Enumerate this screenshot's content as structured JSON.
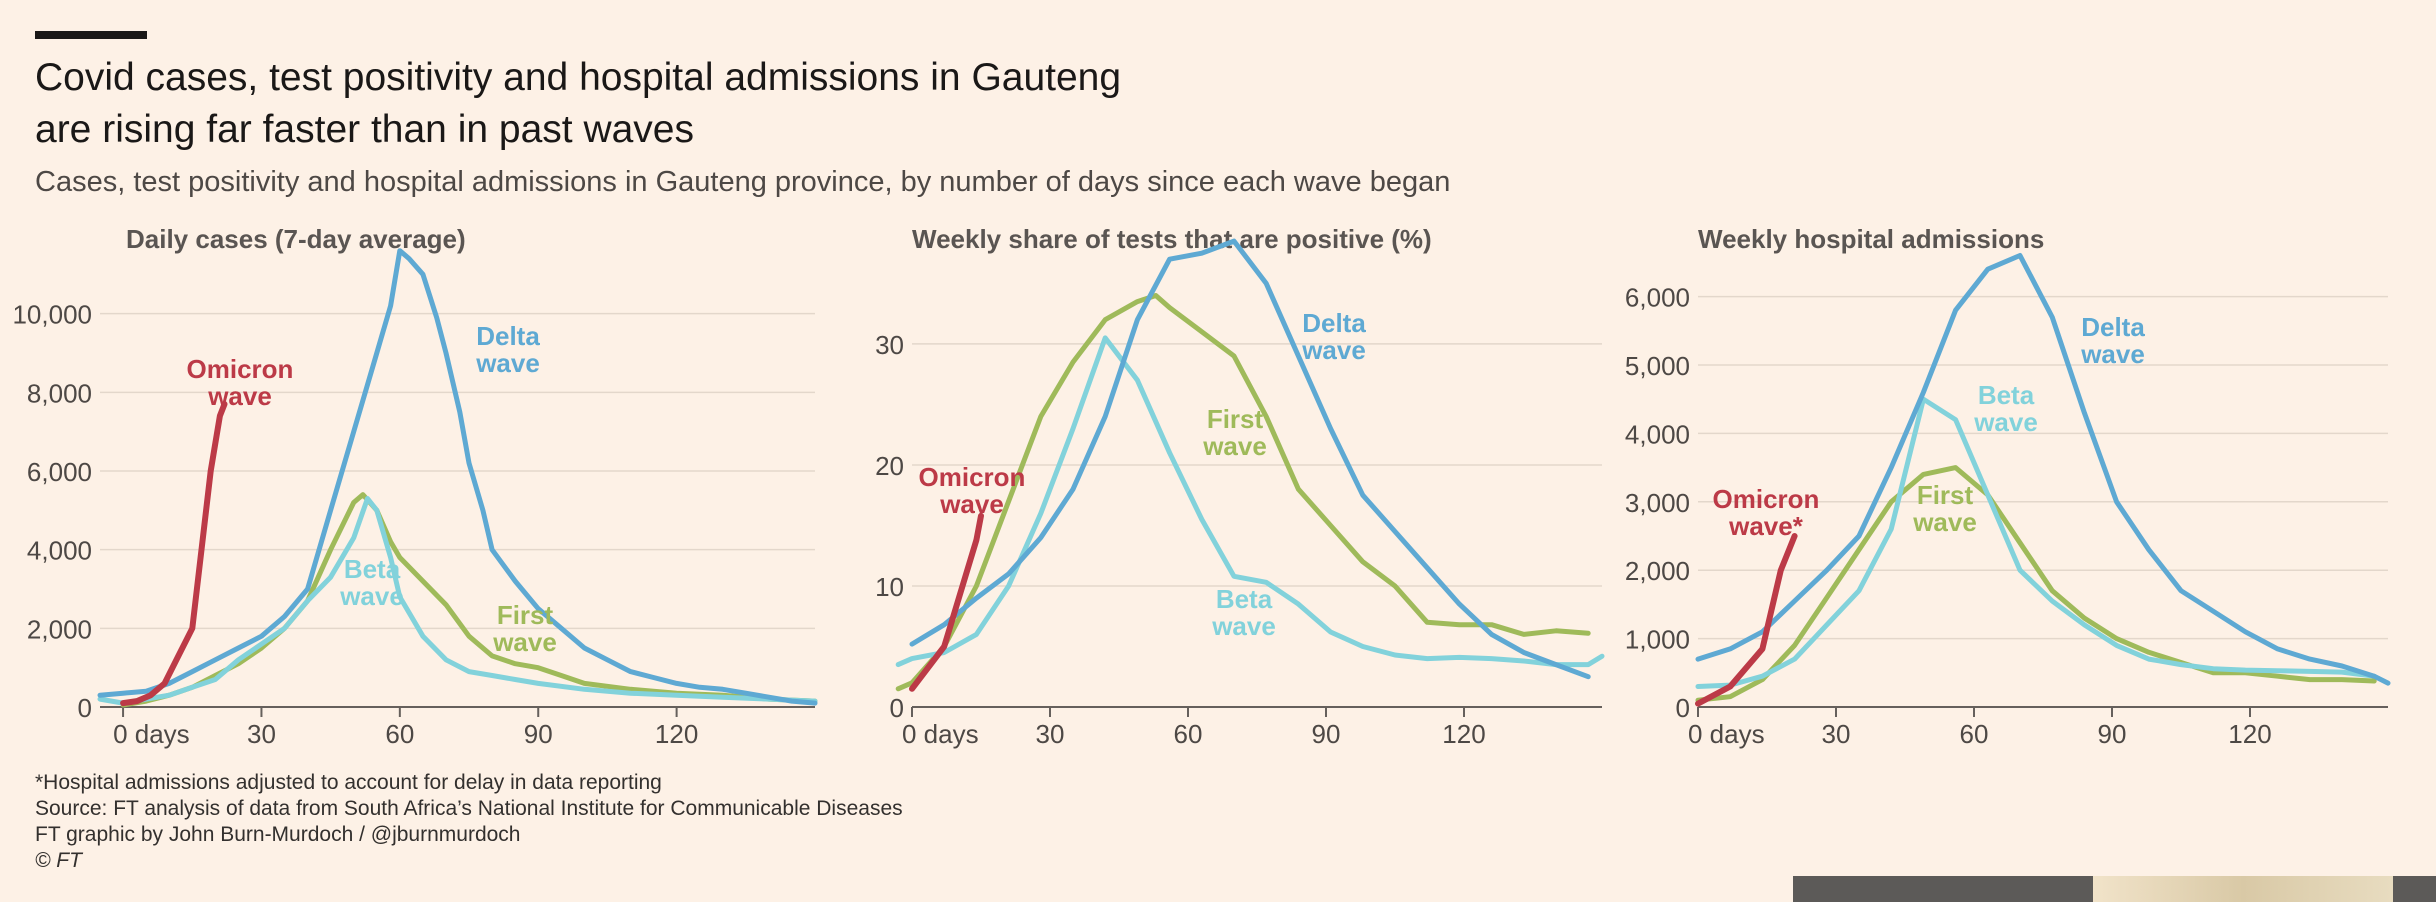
{
  "title_line1": "Covid cases, test positivity and hospital admissions in Gauteng",
  "title_line2": "are rising far faster than in past waves",
  "subtitle": "Cases, test positivity and hospital admissions in Gauteng province, by number of days since each wave began",
  "colors": {
    "omicron": "#bc3a47",
    "delta": "#5ea9d3",
    "beta": "#82d2db",
    "first": "#9fba5a",
    "background": "#fdf1e6",
    "grid": "#e3d7cb"
  },
  "series_labels": {
    "omicron": [
      "Omicron",
      "wave"
    ],
    "omicron_star": [
      "Omicron",
      "wave*"
    ],
    "delta": [
      "Delta",
      "wave"
    ],
    "beta": [
      "Beta",
      "wave"
    ],
    "first": [
      "First",
      "wave"
    ]
  },
  "chart_data": [
    {
      "type": "line",
      "title": "Daily cases (7-day average)",
      "xlabel": "days since each wave began",
      "xlim": [
        -5,
        150
      ],
      "ylim": [
        0,
        12000
      ],
      "x_ticks": [
        0,
        30,
        60,
        90,
        120
      ],
      "x_tick_labels": [
        "0 days",
        "30",
        "60",
        "90",
        "120"
      ],
      "y_ticks": [
        0,
        2000,
        4000,
        6000,
        8000,
        10000
      ],
      "y_tick_labels": [
        "0",
        "2,000",
        "4,000",
        "6,000",
        "8,000",
        "10,000"
      ],
      "series": [
        {
          "name": "Delta wave",
          "key": "delta",
          "x": [
            -5,
            0,
            5,
            10,
            15,
            20,
            25,
            30,
            35,
            40,
            45,
            50,
            55,
            58,
            60,
            62,
            65,
            68,
            70,
            73,
            75,
            78,
            80,
            85,
            90,
            95,
            100,
            105,
            110,
            115,
            120,
            125,
            130,
            135,
            140,
            145,
            150
          ],
          "values": [
            300,
            350,
            400,
            600,
            900,
            1200,
            1500,
            1800,
            2300,
            3000,
            5000,
            7000,
            9000,
            10200,
            11600,
            11400,
            11000,
            9900,
            9000,
            7500,
            6200,
            5000,
            4000,
            3200,
            2500,
            2000,
            1500,
            1200,
            900,
            750,
            600,
            500,
            450,
            350,
            250,
            150,
            100
          ]
        },
        {
          "name": "Beta wave",
          "key": "beta",
          "x": [
            -5,
            0,
            5,
            10,
            15,
            20,
            25,
            30,
            35,
            40,
            45,
            50,
            53,
            55,
            58,
            60,
            65,
            70,
            75,
            80,
            85,
            90,
            100,
            110,
            120,
            130,
            140,
            150
          ],
          "values": [
            200,
            100,
            200,
            300,
            500,
            700,
            1200,
            1600,
            2000,
            2700,
            3300,
            4300,
            5300,
            5000,
            3800,
            2800,
            1800,
            1200,
            900,
            800,
            700,
            600,
            450,
            350,
            300,
            250,
            200,
            150
          ]
        },
        {
          "name": "First wave",
          "key": "first",
          "x": [
            0,
            5,
            10,
            15,
            20,
            25,
            30,
            35,
            40,
            45,
            50,
            52,
            55,
            58,
            60,
            65,
            70,
            75,
            80,
            85,
            90,
            95,
            100,
            110,
            120,
            130,
            140,
            150
          ],
          "values": [
            50,
            150,
            300,
            500,
            800,
            1100,
            1500,
            2000,
            2700,
            4000,
            5200,
            5400,
            5000,
            4200,
            3800,
            3200,
            2600,
            1800,
            1300,
            1100,
            1000,
            800,
            600,
            450,
            350,
            300,
            200,
            150
          ]
        },
        {
          "name": "Omicron wave",
          "key": "omicron",
          "x": [
            0,
            3,
            6,
            9,
            12,
            15,
            17,
            19,
            21,
            22
          ],
          "values": [
            100,
            150,
            300,
            600,
            1300,
            2000,
            4000,
            6000,
            7400,
            7700
          ]
        }
      ],
      "annotations": [
        {
          "text": "Omicron wave",
          "series": "omicron"
        },
        {
          "text": "Delta wave",
          "series": "delta"
        },
        {
          "text": "Beta wave",
          "series": "beta"
        },
        {
          "text": "First wave",
          "series": "first"
        }
      ]
    },
    {
      "type": "line",
      "title": "Weekly share of tests that are positive (%)",
      "xlabel": "days since each wave began",
      "xlim": [
        0,
        150
      ],
      "ylim": [
        0,
        39
      ],
      "x_ticks": [
        0,
        30,
        60,
        90,
        120
      ],
      "x_tick_labels": [
        "0 days",
        "30",
        "60",
        "90",
        "120"
      ],
      "y_ticks": [
        0,
        10,
        20,
        30
      ],
      "y_tick_labels": [
        "0",
        "10",
        "20",
        "30"
      ],
      "series": [
        {
          "name": "Delta wave",
          "key": "delta",
          "x": [
            0,
            7,
            14,
            21,
            28,
            35,
            42,
            49,
            56,
            63,
            70,
            77,
            84,
            91,
            98,
            105,
            112,
            119,
            126,
            133,
            140,
            147
          ],
          "values": [
            5.2,
            6.8,
            9,
            11,
            14,
            18,
            24,
            32,
            37,
            37.5,
            38.5,
            35,
            29,
            23,
            17.5,
            14.5,
            11.5,
            8.5,
            6,
            4.5,
            3.5,
            2.5
          ]
        },
        {
          "name": "Beta wave",
          "key": "beta",
          "x": [
            -3,
            0,
            7,
            14,
            21,
            28,
            35,
            42,
            49,
            56,
            63,
            70,
            77,
            84,
            91,
            98,
            105,
            112,
            119,
            126,
            133,
            140,
            147,
            150
          ],
          "values": [
            3.5,
            4,
            4.5,
            6,
            10,
            16,
            23,
            30.5,
            27,
            21,
            15.5,
            10.8,
            10.3,
            8.5,
            6.2,
            5,
            4.3,
            4,
            4.1,
            4,
            3.8,
            3.5,
            3.5,
            4.2
          ]
        },
        {
          "name": "First wave",
          "key": "first",
          "x": [
            -3,
            0,
            7,
            14,
            21,
            28,
            35,
            42,
            49,
            53,
            56,
            63,
            70,
            77,
            84,
            91,
            98,
            105,
            112,
            119,
            126,
            133,
            140,
            147
          ],
          "values": [
            1.5,
            2,
            5,
            10,
            17,
            24,
            28.5,
            32,
            33.5,
            34,
            33,
            31,
            29,
            24,
            18,
            15,
            12,
            10,
            7,
            6.8,
            6.8,
            6,
            6.3,
            6.1
          ]
        },
        {
          "name": "Omicron wave",
          "key": "omicron",
          "x": [
            0,
            7,
            14,
            15
          ],
          "values": [
            1.5,
            5,
            13.8,
            15.8
          ]
        }
      ],
      "annotations": [
        {
          "text": "Omicron wave",
          "series": "omicron"
        },
        {
          "text": "Delta wave",
          "series": "delta"
        },
        {
          "text": "First wave",
          "series": "first"
        },
        {
          "text": "Beta wave",
          "series": "beta"
        }
      ]
    },
    {
      "type": "line",
      "title": "Weekly hospital admissions",
      "xlabel": "days since each wave began",
      "xlim": [
        0,
        150
      ],
      "ylim": [
        0,
        6900
      ],
      "x_ticks": [
        0,
        30,
        60,
        90,
        120
      ],
      "x_tick_labels": [
        "0 days",
        "30",
        "60",
        "90",
        "120"
      ],
      "y_ticks": [
        0,
        1000,
        2000,
        3000,
        4000,
        5000,
        6000
      ],
      "y_tick_labels": [
        "0",
        "1,000",
        "2,000",
        "3,000",
        "4,000",
        "5,000",
        "6,000"
      ],
      "series": [
        {
          "name": "Delta wave",
          "key": "delta",
          "x": [
            0,
            7,
            14,
            21,
            28,
            35,
            42,
            49,
            56,
            63,
            70,
            77,
            84,
            91,
            98,
            105,
            112,
            119,
            126,
            133,
            140,
            147,
            150
          ],
          "values": [
            700,
            850,
            1100,
            1550,
            2000,
            2500,
            3500,
            4600,
            5800,
            6400,
            6600,
            5700,
            4300,
            3000,
            2300,
            1700,
            1400,
            1100,
            850,
            700,
            600,
            450,
            350
          ]
        },
        {
          "name": "Beta wave",
          "key": "beta",
          "x": [
            0,
            7,
            14,
            21,
            28,
            35,
            42,
            49,
            56,
            63,
            70,
            77,
            84,
            91,
            98,
            105,
            112,
            119,
            126,
            133,
            140,
            147
          ],
          "values": [
            300,
            320,
            450,
            700,
            1200,
            1700,
            2600,
            4500,
            4200,
            3100,
            2000,
            1550,
            1200,
            900,
            700,
            620,
            560,
            540,
            530,
            520,
            510,
            450
          ]
        },
        {
          "name": "First wave",
          "key": "first",
          "x": [
            0,
            7,
            14,
            21,
            28,
            35,
            42,
            49,
            56,
            63,
            70,
            77,
            84,
            91,
            98,
            105,
            112,
            119,
            126,
            133,
            140,
            147
          ],
          "values": [
            100,
            150,
            400,
            900,
            1600,
            2300,
            3000,
            3400,
            3500,
            3100,
            2400,
            1700,
            1300,
            1000,
            800,
            650,
            500,
            500,
            450,
            400,
            400,
            380
          ]
        },
        {
          "name": "Omicron wave",
          "key": "omicron",
          "x": [
            0,
            7,
            14,
            18,
            21
          ],
          "values": [
            50,
            300,
            850,
            2000,
            2500
          ]
        }
      ],
      "annotations": [
        {
          "text": "Omicron wave*",
          "series": "omicron"
        },
        {
          "text": "Delta wave",
          "series": "delta"
        },
        {
          "text": "Beta wave",
          "series": "beta"
        },
        {
          "text": "First wave",
          "series": "first"
        }
      ]
    }
  ],
  "footer": {
    "note": "*Hospital admissions adjusted to account for delay in data reporting",
    "source": "Source: FT analysis of data from South Africa’s National Institute for Communicable Diseases",
    "credit": "FT graphic by John Burn-Murdoch / @jburnmurdoch",
    "copyright": "© FT"
  }
}
